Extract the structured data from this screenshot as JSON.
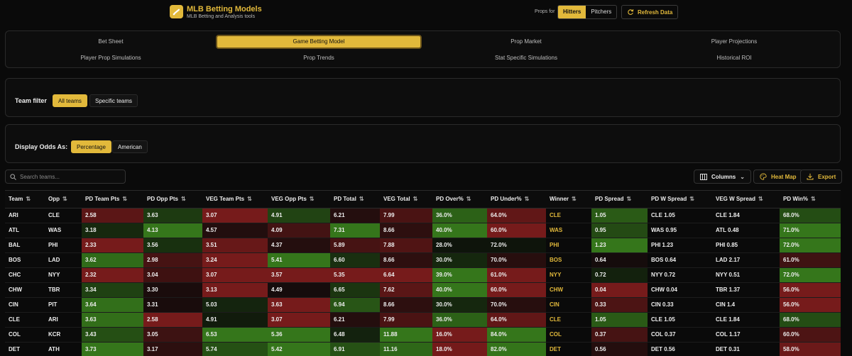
{
  "header": {
    "title": "MLB Betting Models",
    "subtitle": "MLB Betting and Analysis tools",
    "props_for_label": "Props for",
    "props_options": [
      "Hitters",
      "Pitchers"
    ],
    "props_selected": "Hitters",
    "refresh_label": "Refresh Data"
  },
  "nav": {
    "row1": [
      "Bet Sheet",
      "Game Betting Model",
      "Prop Market",
      "Player Projections"
    ],
    "row2": [
      "Player Prop Simulations",
      "Prop Trends",
      "Stat Specific Simulations",
      "Historical ROI"
    ],
    "active": "Game Betting Model"
  },
  "team_filter": {
    "label": "Team filter",
    "options": [
      "All teams",
      "Specific teams"
    ],
    "selected": "All teams"
  },
  "odds_display": {
    "label": "Display Odds As:",
    "options": [
      "Percentage",
      "American"
    ],
    "selected": "Percentage"
  },
  "toolbar": {
    "search_placeholder": "Search teams...",
    "columns_label": "Columns",
    "heatmap_label": "Heat Map",
    "export_label": "Export"
  },
  "colors": {
    "accent": "#e2b93b",
    "heat_green": "#3d8a1e",
    "heat_red": "#8a1e1e"
  },
  "table": {
    "headers": [
      "Team",
      "Opp",
      "PD Team Pts",
      "PD Opp Pts",
      "VEG Team Pts",
      "VEG Opp Pts",
      "PD Total",
      "VEG Total",
      "PD Over%",
      "PD Under%",
      "Winner",
      "PD Spread",
      "PD W Spread",
      "VEG W Spread",
      "PD Win%"
    ],
    "rows": [
      [
        "ARI",
        "CLE",
        "2.58",
        "3.63",
        "3.07",
        "4.91",
        "6.21",
        "7.99",
        "36.0%",
        "64.0%",
        "CLE",
        "1.05",
        "CLE 1.05",
        "CLE 1.84",
        "68.0%"
      ],
      [
        "ATL",
        "WAS",
        "3.18",
        "4.13",
        "4.57",
        "4.09",
        "7.31",
        "8.66",
        "40.0%",
        "60.0%",
        "WAS",
        "0.95",
        "WAS 0.95",
        "ATL 0.48",
        "71.0%"
      ],
      [
        "BAL",
        "PHI",
        "2.33",
        "3.56",
        "3.51",
        "4.37",
        "5.89",
        "7.88",
        "28.0%",
        "72.0%",
        "PHI",
        "1.23",
        "PHI 1.23",
        "PHI 0.85",
        "72.0%"
      ],
      [
        "BOS",
        "LAD",
        "3.62",
        "2.98",
        "3.24",
        "5.41",
        "6.60",
        "8.66",
        "30.0%",
        "70.0%",
        "BOS",
        "0.64",
        "BOS 0.64",
        "LAD 2.17",
        "61.0%"
      ],
      [
        "CHC",
        "NYY",
        "2.32",
        "3.04",
        "3.07",
        "3.57",
        "5.35",
        "6.64",
        "39.0%",
        "61.0%",
        "NYY",
        "0.72",
        "NYY 0.72",
        "NYY 0.51",
        "72.0%"
      ],
      [
        "CHW",
        "TBR",
        "3.34",
        "3.30",
        "3.13",
        "4.49",
        "6.65",
        "7.62",
        "40.0%",
        "60.0%",
        "CHW",
        "0.04",
        "CHW 0.04",
        "TBR 1.37",
        "56.0%"
      ],
      [
        "CIN",
        "PIT",
        "3.64",
        "3.31",
        "5.03",
        "3.63",
        "6.94",
        "8.66",
        "30.0%",
        "70.0%",
        "CIN",
        "0.33",
        "CIN 0.33",
        "CIN 1.4",
        "56.0%"
      ],
      [
        "CLE",
        "ARI",
        "3.63",
        "2.58",
        "4.91",
        "3.07",
        "6.21",
        "7.99",
        "36.0%",
        "64.0%",
        "CLE",
        "1.05",
        "CLE 1.05",
        "CLE 1.84",
        "68.0%"
      ],
      [
        "COL",
        "KCR",
        "3.43",
        "3.05",
        "6.53",
        "5.36",
        "6.48",
        "11.88",
        "16.0%",
        "84.0%",
        "COL",
        "0.37",
        "COL 0.37",
        "COL 1.17",
        "60.0%"
      ],
      [
        "DET",
        "ATH",
        "3.73",
        "3.17",
        "5.74",
        "5.42",
        "6.91",
        "11.16",
        "18.0%",
        "82.0%",
        "DET",
        "0.56",
        "DET 0.56",
        "DET 0.31",
        "58.0%"
      ]
    ]
  }
}
